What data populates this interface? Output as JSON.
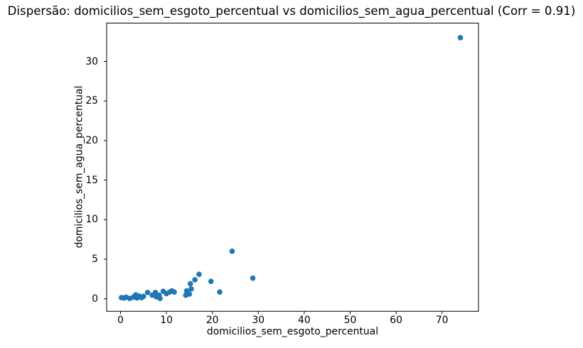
{
  "chart_data": {
    "type": "scatter",
    "title": "Dispersão: domicilios_sem_esgoto_percentual vs domicilios_sem_agua_percentual (Corr = 0.91)",
    "xlabel": "domicilios_sem_esgoto_percentual",
    "ylabel": "domicilios_sem_agua_percentual",
    "correlation": 0.91,
    "xticks": [
      0,
      10,
      20,
      30,
      40,
      50,
      60,
      70
    ],
    "yticks": [
      0,
      5,
      10,
      15,
      20,
      25,
      30
    ],
    "xlim": [
      -3.1,
      77.9
    ],
    "ylim": [
      -1.6,
      34.85
    ],
    "grid": false,
    "marker_color": "#1f77b4",
    "points": [
      [
        0.2,
        0.15
      ],
      [
        0.8,
        0.1
      ],
      [
        1.2,
        0.2
      ],
      [
        2.0,
        0.05
      ],
      [
        2.8,
        0.2
      ],
      [
        3.3,
        0.5
      ],
      [
        3.6,
        0.1
      ],
      [
        4.0,
        0.35
      ],
      [
        4.6,
        0.15
      ],
      [
        5.0,
        0.3
      ],
      [
        5.9,
        0.8
      ],
      [
        6.9,
        0.45
      ],
      [
        7.6,
        0.8
      ],
      [
        7.8,
        0.25
      ],
      [
        8.4,
        0.45
      ],
      [
        8.6,
        0.05
      ],
      [
        9.3,
        0.95
      ],
      [
        10.0,
        0.65
      ],
      [
        10.7,
        0.85
      ],
      [
        11.2,
        1.0
      ],
      [
        11.7,
        0.85
      ],
      [
        14.2,
        0.45
      ],
      [
        14.4,
        1.0
      ],
      [
        15.0,
        0.6
      ],
      [
        15.4,
        1.25
      ],
      [
        15.2,
        1.9
      ],
      [
        16.2,
        2.4
      ],
      [
        17.1,
        3.1
      ],
      [
        19.7,
        2.2
      ],
      [
        21.6,
        0.85
      ],
      [
        24.3,
        6.0
      ],
      [
        28.8,
        2.6
      ],
      [
        74.0,
        33.0
      ]
    ]
  }
}
